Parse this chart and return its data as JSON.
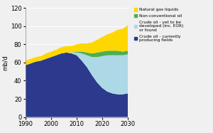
{
  "years": [
    1990,
    1992,
    1994,
    1996,
    1998,
    2000,
    2002,
    2004,
    2006,
    2008,
    2010,
    2012,
    2014,
    2016,
    2018,
    2020,
    2022,
    2024,
    2026,
    2028,
    2030
  ],
  "crude_producing": [
    57,
    59,
    61,
    62,
    64,
    66,
    68,
    70,
    71,
    70,
    68,
    62,
    55,
    46,
    38,
    32,
    28,
    26,
    25,
    25,
    26
  ],
  "crude_yet": [
    0,
    0,
    0,
    0,
    0,
    0,
    0,
    0,
    0,
    1,
    3,
    8,
    13,
    20,
    28,
    35,
    40,
    42,
    43,
    43,
    43
  ],
  "non_conventional": [
    0,
    0,
    0,
    0,
    0,
    0,
    0,
    0,
    0,
    0,
    1,
    2,
    3,
    4,
    5,
    5,
    5,
    5,
    5,
    4,
    4
  ],
  "natural_gas": [
    5,
    5,
    5,
    5,
    6,
    6,
    6,
    7,
    7,
    7,
    8,
    9,
    10,
    12,
    14,
    16,
    18,
    20,
    23,
    25,
    28
  ],
  "colors": {
    "crude_producing": "#2B3A8C",
    "crude_yet": "#ADD8E6",
    "non_conventional": "#4CAF50",
    "natural_gas": "#FFD700"
  },
  "ylabel": "mb/d",
  "ylim": [
    0,
    120
  ],
  "yticks": [
    0,
    20,
    40,
    60,
    80,
    100,
    120
  ],
  "xticks": [
    1990,
    2000,
    2010,
    2020,
    2030
  ],
  "legend_labels": [
    "Natural gas liquids",
    "Non-conventional oil",
    "Crude oil - yet to be\ndeveloped (inc. EOR)\nor found",
    "Crude oil - currently\nproducing fields"
  ],
  "legend_colors": [
    "#FFD700",
    "#4CAF50",
    "#ADD8E6",
    "#2B3A8C"
  ],
  "bg_color": "#f0f0f0",
  "plot_bg_color": "#f0f0f0"
}
